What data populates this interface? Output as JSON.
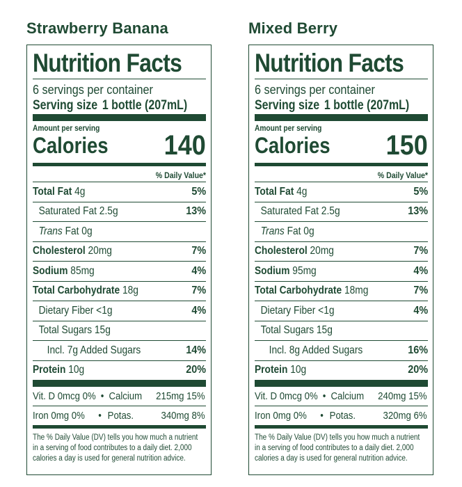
{
  "heading_color": "#1f4a33",
  "labels": {
    "nutrition_facts": "Nutrition Facts",
    "servings_per_container": "6 servings per container",
    "serving_size_label": "Serving size",
    "serving_size_value": "1 bottle (207mL)",
    "amount_per_serving": "Amount per serving",
    "calories": "Calories",
    "daily_value": "% Daily Value*",
    "total_fat": "Total Fat",
    "saturated_fat": "Saturated Fat",
    "trans_fat_italic": "Trans",
    "trans_fat_rest": " Fat 0g",
    "cholesterol": "Cholesterol",
    "sodium": "Sodium",
    "total_carb": "Total Carbohydrate",
    "dietary_fiber": "Dietary Fiber <1g",
    "total_sugars": "Total Sugars 15g",
    "incl_prefix": "Incl. ",
    "added_sugars_suffix": " Added Sugars",
    "protein": "Protein",
    "vit_d": "Vit. D 0mcg 0%",
    "bullet": "•",
    "calcium": "Calcium",
    "iron": "Iron 0mg 0%",
    "potas": "Potas.",
    "footnote": "The % Daily Value (DV) tells you how much a nutrient in a serving of food contributes to a daily diet. 2,000 calories a day is used for general nutrition advice."
  },
  "products": [
    {
      "name": "Strawberry Banana",
      "calories": "140",
      "total_fat": "4g",
      "total_fat_dv": "5%",
      "saturated_fat": "2.5g",
      "saturated_fat_dv": "13%",
      "cholesterol": "20mg",
      "cholesterol_dv": "7%",
      "sodium": "85mg",
      "sodium_dv": "4%",
      "total_carb": "18g",
      "total_carb_dv": "7%",
      "fiber_dv": "4%",
      "added_sugars": "7g",
      "added_sugars_dv": "14%",
      "protein": "10g",
      "protein_dv": "20%",
      "calcium": "215mg 15%",
      "potassium": "340mg 8%"
    },
    {
      "name": "Mixed Berry",
      "calories": "150",
      "total_fat": "4g",
      "total_fat_dv": "5%",
      "saturated_fat": "2.5g",
      "saturated_fat_dv": "13%",
      "cholesterol": "20mg",
      "cholesterol_dv": "7%",
      "sodium": "95mg",
      "sodium_dv": "4%",
      "total_carb": "18mg",
      "total_carb_dv": "7%",
      "fiber_dv": "4%",
      "added_sugars": "8g",
      "added_sugars_dv": "16%",
      "protein": "10g",
      "protein_dv": "20%",
      "calcium": "240mg 15%",
      "potassium": "320mg 6%"
    }
  ]
}
